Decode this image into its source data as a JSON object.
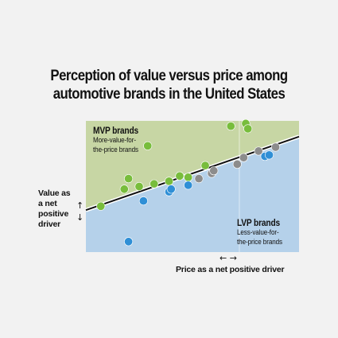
{
  "title_lines": [
    "Perception of value versus price among",
    "automotive brands in the United States"
  ],
  "mvp": {
    "head": "MVP brands",
    "sub1": "More-value-for-",
    "sub2": "the-price brands"
  },
  "lvp": {
    "head": "LVP brands",
    "sub1": "Less-value-for-",
    "sub2": "the-price brands"
  },
  "ylabel_lines": [
    "Value as",
    "a net",
    "positive",
    "driver"
  ],
  "xlabel": "Price as a net positive driver",
  "arrows": {
    "y": [
      "↑",
      "↓"
    ],
    "x": "← →"
  },
  "colors": {
    "mvp_region": "#c7d6a4",
    "lvp_region": "#b5d1ea",
    "mvp_point": "#78bd3c",
    "lvp_point": "#2f8fd6",
    "neutral_point": "#8c8c8c",
    "fair_value_line": "#111111",
    "background": "#f2f2f2"
  },
  "chart_data": {
    "type": "scatter",
    "title": "Perception of value versus price among automotive brands in the United States",
    "xlabel": "Price as a net positive driver",
    "ylabel": "Value as a net positive driver",
    "xlim": [
      0,
      100
    ],
    "ylim": [
      0,
      100
    ],
    "grid": false,
    "fair_value_line": {
      "x": [
        0,
        100
      ],
      "y": [
        32,
        88
      ]
    },
    "series": [
      {
        "name": "MVP brands",
        "color": "#78bd3c",
        "points": [
          [
            7,
            35
          ],
          [
            18,
            48
          ],
          [
            20,
            56
          ],
          [
            25,
            50
          ],
          [
            29,
            81
          ],
          [
            32,
            52
          ],
          [
            39,
            54
          ],
          [
            44,
            58
          ],
          [
            48,
            57
          ],
          [
            56,
            66
          ],
          [
            68,
            96
          ],
          [
            75,
            98
          ],
          [
            76,
            94
          ]
        ]
      },
      {
        "name": "LVP brands",
        "color": "#2f8fd6",
        "points": [
          [
            27,
            39
          ],
          [
            39,
            46
          ],
          [
            40,
            48
          ],
          [
            48,
            51
          ],
          [
            84,
            73
          ],
          [
            86,
            74
          ],
          [
            20,
            8
          ]
        ]
      },
      {
        "name": "",
        "color": "#8c8c8c",
        "points": [
          [
            53,
            56
          ],
          [
            59,
            60
          ],
          [
            60,
            62
          ],
          [
            71,
            67
          ],
          [
            74,
            72
          ],
          [
            81,
            77
          ],
          [
            89,
            80
          ]
        ]
      }
    ]
  }
}
